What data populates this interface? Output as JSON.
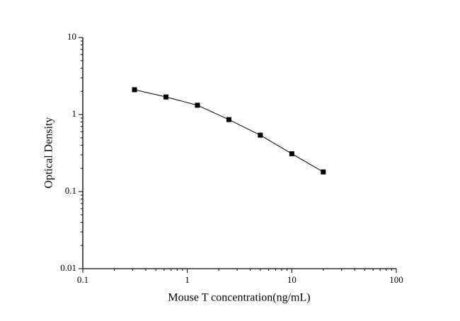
{
  "chart_data": {
    "type": "scatter",
    "xlabel": "Mouse T concentration(ng/mL)",
    "ylabel": "Optical Density",
    "x": [
      0.3125,
      0.625,
      1.25,
      2.5,
      5,
      10,
      20
    ],
    "series": [
      {
        "color": "#000000",
        "values": [
          2.1,
          1.69,
          1.32,
          0.86,
          0.54,
          0.31,
          0.18
        ]
      }
    ],
    "xscale": "log",
    "yscale": "log",
    "xlim": [
      0.1,
      100
    ],
    "ylim": [
      0.01,
      10
    ],
    "xticks": [
      0.1,
      1,
      10,
      100
    ],
    "yticks": [
      0.01,
      0.1,
      1,
      10
    ],
    "line": true
  }
}
